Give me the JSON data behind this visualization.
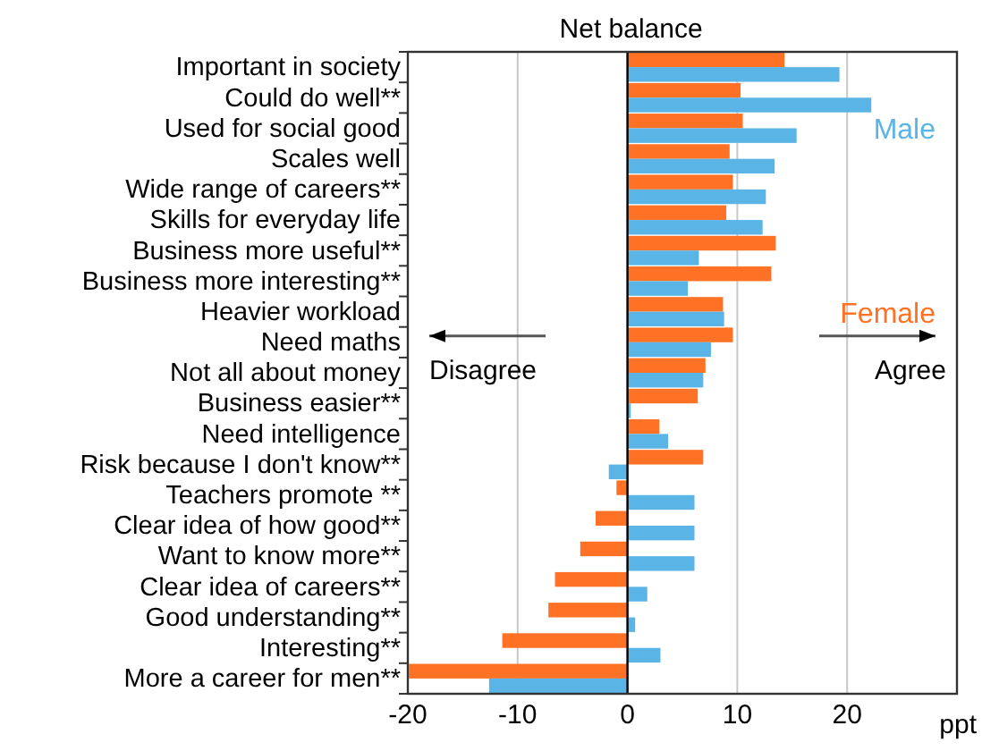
{
  "chart_data": {
    "type": "bar",
    "orientation": "horizontal",
    "subtitle": "Net balance",
    "xlabel": "ppt",
    "categories": [
      "Important in society",
      "Could do well**",
      "Used for social good",
      "Scales well",
      "Wide range of careers**",
      "Skills for everyday life",
      "Business more useful**",
      "Business more interesting**",
      "Heavier workload",
      "Need maths",
      "Not all about money",
      "Business easier**",
      "Need intelligence",
      "Risk because I don't know**",
      "Teachers promote **",
      "Clear idea of how good**",
      "Want to know more**",
      "Clear idea of careers**",
      "Good understanding**",
      "Interesting**",
      "More a career for men**"
    ],
    "series": [
      {
        "name": "Female",
        "color": "#ff7124",
        "values": [
          14.3,
          10.3,
          10.5,
          9.3,
          9.6,
          9.0,
          13.5,
          13.1,
          8.7,
          9.6,
          7.1,
          6.4,
          2.9,
          6.9,
          -1.0,
          -2.9,
          -4.3,
          -6.6,
          -7.2,
          -11.4,
          -19.9
        ]
      },
      {
        "name": "Male",
        "color": "#5ab4e5",
        "values": [
          19.3,
          22.2,
          15.4,
          13.4,
          12.6,
          12.3,
          6.5,
          5.5,
          8.8,
          7.6,
          6.9,
          0.3,
          3.7,
          -1.7,
          6.1,
          6.1,
          6.1,
          1.8,
          0.7,
          3.0,
          -12.6
        ]
      }
    ],
    "xlim": [
      -20,
      30
    ],
    "xticks": [
      -20,
      -10,
      0,
      10,
      20
    ],
    "grid": "x",
    "legend": "right",
    "ref_lines": [
      {
        "axis": "x",
        "value": 0,
        "color": "#000000"
      }
    ],
    "annotations": [
      "Disagree",
      "Agree"
    ]
  }
}
